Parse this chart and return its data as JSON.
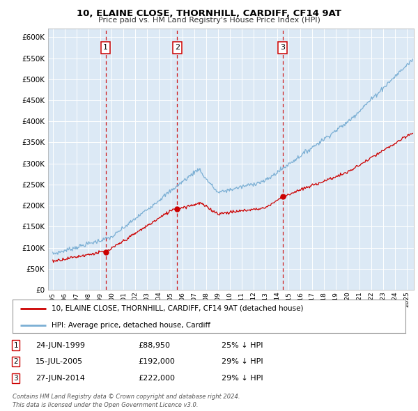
{
  "title": "10, ELAINE CLOSE, THORNHILL, CARDIFF, CF14 9AT",
  "subtitle": "Price paid vs. HM Land Registry's House Price Index (HPI)",
  "plot_bg_color": "#dce9f5",
  "hpi_color": "#7bafd4",
  "price_color": "#cc0000",
  "vline_color": "#cc0000",
  "ylim": [
    0,
    620000
  ],
  "yticks": [
    0,
    50000,
    100000,
    150000,
    200000,
    250000,
    300000,
    350000,
    400000,
    450000,
    500000,
    550000,
    600000
  ],
  "ytick_labels": [
    "£0",
    "£50K",
    "£100K",
    "£150K",
    "£200K",
    "£250K",
    "£300K",
    "£350K",
    "£400K",
    "£450K",
    "£500K",
    "£550K",
    "£600K"
  ],
  "xmin": 1994.6,
  "xmax": 2025.6,
  "transactions": [
    {
      "label": "1",
      "date_num": 1999.48,
      "price": 88950
    },
    {
      "label": "2",
      "date_num": 2005.54,
      "price": 192000
    },
    {
      "label": "3",
      "date_num": 2014.49,
      "price": 222000
    }
  ],
  "legend_entries": [
    "10, ELAINE CLOSE, THORNHILL, CARDIFF, CF14 9AT (detached house)",
    "HPI: Average price, detached house, Cardiff"
  ],
  "table_rows": [
    [
      "1",
      "24-JUN-1999",
      "£88,950",
      "25% ↓ HPI"
    ],
    [
      "2",
      "15-JUL-2005",
      "£192,000",
      "29% ↓ HPI"
    ],
    [
      "3",
      "27-JUN-2014",
      "£222,000",
      "29% ↓ HPI"
    ]
  ],
  "footer": "Contains HM Land Registry data © Crown copyright and database right 2024.\nThis data is licensed under the Open Government Licence v3.0."
}
